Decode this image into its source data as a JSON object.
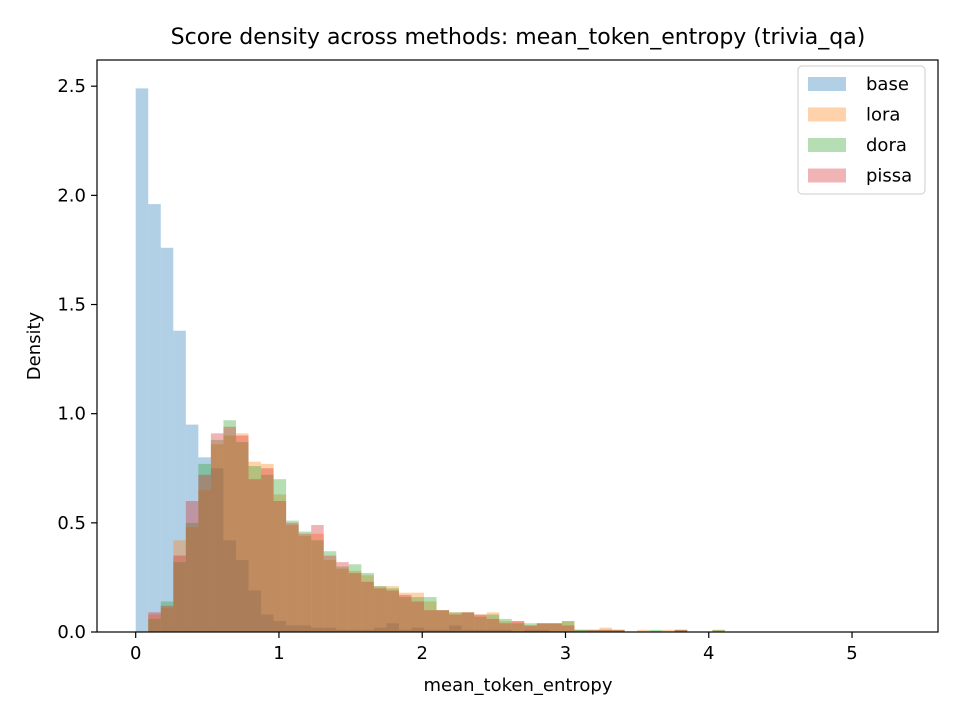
{
  "chart_data": {
    "type": "bar",
    "title": "Score density across methods: mean_token_entropy (trivia_qa)",
    "xlabel": "mean_token_entropy",
    "ylabel": "Density",
    "xlim": [
      -0.27,
      5.6
    ],
    "ylim": [
      0,
      2.62
    ],
    "xticks": [
      0,
      1,
      2,
      3,
      4,
      5
    ],
    "yticks": [
      0.0,
      0.5,
      1.0,
      1.5,
      2.0,
      2.5
    ],
    "xtick_labels": [
      "0",
      "1",
      "2",
      "3",
      "4",
      "5"
    ],
    "ytick_labels": [
      "0.0",
      "0.5",
      "1.0",
      "1.5",
      "2.0",
      "2.5"
    ],
    "legend_position": "upper-right",
    "bin_width": 0.0875,
    "bin_start": 0.0,
    "series": [
      {
        "name": "base",
        "color": "#1f77b4",
        "values": [
          2.49,
          1.96,
          1.76,
          1.38,
          0.95,
          0.8,
          0.75,
          0.42,
          0.33,
          0.19,
          0.08,
          0.05,
          0.03,
          0.03,
          0.02,
          0.02,
          0.01,
          0.01,
          0.01,
          0.02,
          0.04,
          0.01,
          0.02,
          0.01,
          0.01,
          0.03,
          0.01,
          0.01,
          0.01,
          0.01,
          0.0,
          0.01,
          0.01,
          0.0,
          0.0,
          0.01,
          0.0,
          0.0,
          0.0,
          0.0,
          0.0,
          0.0,
          0.0,
          0.0,
          0.0,
          0.0,
          0.0,
          0.0,
          0.0,
          0.0,
          0.0,
          0.0,
          0.0,
          0.0,
          0.0,
          0.0,
          0.0,
          0.0,
          0.0,
          0.0,
          0.0
        ]
      },
      {
        "name": "lora",
        "color": "#ff7f0e",
        "values": [
          0.0,
          0.08,
          0.11,
          0.42,
          0.48,
          0.65,
          0.86,
          0.9,
          0.91,
          0.78,
          0.77,
          0.63,
          0.49,
          0.44,
          0.45,
          0.33,
          0.29,
          0.28,
          0.26,
          0.21,
          0.21,
          0.18,
          0.18,
          0.14,
          0.1,
          0.09,
          0.09,
          0.08,
          0.09,
          0.05,
          0.05,
          0.03,
          0.04,
          0.04,
          0.05,
          0.01,
          0.01,
          0.02,
          0.01,
          0.0,
          0.01,
          0.0,
          0.01,
          0.01,
          0.0,
          0.0,
          0.01,
          0.0,
          0.0,
          0.0,
          0.0,
          0.0,
          0.0,
          0.0,
          0.0,
          0.0,
          0.0,
          0.0,
          0.0,
          0.0,
          0.0
        ]
      },
      {
        "name": "dora",
        "color": "#2ca02c",
        "values": [
          0.0,
          0.06,
          0.14,
          0.32,
          0.5,
          0.77,
          0.88,
          0.97,
          0.87,
          0.76,
          0.72,
          0.7,
          0.51,
          0.46,
          0.42,
          0.37,
          0.3,
          0.31,
          0.27,
          0.21,
          0.2,
          0.16,
          0.16,
          0.16,
          0.1,
          0.09,
          0.09,
          0.07,
          0.08,
          0.06,
          0.04,
          0.04,
          0.04,
          0.04,
          0.05,
          0.01,
          0.01,
          0.01,
          0.01,
          0.0,
          0.0,
          0.01,
          0.0,
          0.01,
          0.0,
          0.0,
          0.01,
          0.0,
          0.0,
          0.0,
          0.0,
          0.0,
          0.0,
          0.0,
          0.0,
          0.0,
          0.0,
          0.0,
          0.0,
          0.0,
          0.0
        ]
      },
      {
        "name": "pissa",
        "color": "#d62728",
        "values": [
          0.0,
          0.09,
          0.12,
          0.35,
          0.6,
          0.72,
          0.91,
          0.94,
          0.9,
          0.7,
          0.75,
          0.6,
          0.5,
          0.45,
          0.49,
          0.35,
          0.32,
          0.27,
          0.23,
          0.2,
          0.19,
          0.17,
          0.14,
          0.1,
          0.1,
          0.08,
          0.09,
          0.08,
          0.06,
          0.04,
          0.05,
          0.03,
          0.04,
          0.04,
          0.03,
          0.0,
          0.01,
          0.01,
          0.01,
          0.0,
          0.0,
          0.0,
          0.0,
          0.01,
          0.0,
          0.0,
          0.0,
          0.0,
          0.0,
          0.0,
          0.0,
          0.0,
          0.0,
          0.0,
          0.0,
          0.0,
          0.0,
          0.0,
          0.0,
          0.0,
          0.0
        ]
      }
    ]
  }
}
